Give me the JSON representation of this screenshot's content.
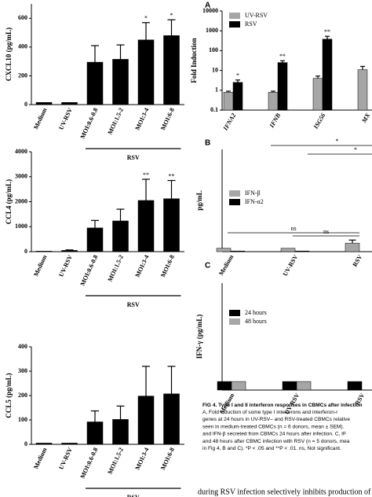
{
  "chart_data": [
    {
      "type": "bar",
      "y_label": "CXCL10 (pg/mL)",
      "categories": [
        "Medium",
        "UV-RSV",
        "MOI:0.6-0.8",
        "MOI:1.5-2",
        "MOI:3-4",
        "MOI:6-8"
      ],
      "values": [
        15,
        15,
        295,
        315,
        450,
        480
      ],
      "errors": [
        0,
        0,
        115,
        100,
        120,
        110
      ],
      "value_annotations": [
        null,
        null,
        null,
        null,
        "*",
        "*"
      ],
      "color": "#000000",
      "ylim": [
        0,
        700
      ],
      "yticks": [
        0,
        200,
        400,
        600
      ],
      "group_label": "RSV"
    },
    {
      "type": "bar",
      "y_label": "CCL4 (pg/mL)",
      "categories": [
        "Medium",
        "UV-RSV",
        "MOI:0.6-0.8",
        "MOI:1.5-2",
        "MOI:3-4",
        "MOI:6-8"
      ],
      "values": [
        20,
        50,
        950,
        1230,
        2050,
        2120
      ],
      "errors": [
        0,
        20,
        300,
        470,
        850,
        730
      ],
      "value_annotations": [
        null,
        null,
        null,
        null,
        "**",
        "**"
      ],
      "color": "#000000",
      "ylim": [
        0,
        4000
      ],
      "yticks": [
        0,
        1000,
        2000,
        3000,
        4000
      ],
      "group_label": "RSV"
    },
    {
      "type": "bar",
      "y_label": "CCL5 (pg/mL)",
      "categories": [
        "Medium",
        "UV-RSV",
        "MOI:0.6-0.8",
        "MOI:1.5-2",
        "MOI:3-4",
        "MOI:6-8"
      ],
      "values": [
        5,
        5,
        92,
        102,
        198,
        207
      ],
      "errors": [
        0,
        0,
        45,
        55,
        122,
        113
      ],
      "color": "#000000",
      "ylim": [
        0,
        400
      ],
      "yticks": [
        0,
        100,
        200,
        300,
        400
      ],
      "group_label": "RSV"
    },
    {
      "type": "bar",
      "panel": "A",
      "y_label": "Fold Induction",
      "log_scale": true,
      "categories": [
        "IFNA2",
        "IFNB",
        "ISG56",
        "MX"
      ],
      "series": [
        {
          "name": "UV-RSV",
          "color": "#a6a6a6",
          "values": [
            0.8,
            0.8,
            4,
            11
          ],
          "errors": [
            0.1,
            0.1,
            1.2,
            5
          ]
        },
        {
          "name": "RSV",
          "color": "#000000",
          "values": [
            2.5,
            25,
            380,
            null
          ],
          "errors": [
            0.8,
            6,
            150,
            null
          ],
          "annotations": [
            "*",
            "**",
            "**",
            null
          ]
        }
      ],
      "ylim": [
        0.1,
        10000
      ],
      "yticks": [
        0.1,
        1,
        10,
        100,
        1000,
        10000
      ],
      "legend": "upper left"
    },
    {
      "type": "bar",
      "panel": "B",
      "y_label": "pg/mL",
      "categories": [
        "Medium",
        "UV-RSV",
        "RSV"
      ],
      "series": [
        {
          "name": "IFN-β",
          "color": "#a6a6a6",
          "values": [
            10,
            10,
            25
          ],
          "errors": [
            0,
            0,
            9
          ]
        },
        {
          "name": "IFN-α2",
          "color": "#000000",
          "values": [
            2,
            2,
            null
          ],
          "errors": [
            0,
            0,
            null
          ]
        }
      ],
      "ylim": [
        0,
        300
      ],
      "annotations": [
        "ns",
        "ns",
        "*",
        "*"
      ],
      "legend": "upper left"
    },
    {
      "type": "bar",
      "panel": "C",
      "y_label": "IFN-γ (pg/mL)",
      "categories": [
        "Medium",
        "UV-RSV",
        "RSV"
      ],
      "series": [
        {
          "name": "24 hours",
          "color": "#000000",
          "values": [
            8,
            8,
            8
          ]
        },
        {
          "name": "48 hours",
          "color": "#a6a6a6",
          "values": [
            8,
            8,
            null
          ]
        }
      ],
      "ylim": [
        0,
        100
      ],
      "legend": "upper left"
    }
  ],
  "caption": [
    "FIG 4. Type I and II interferon responses in CBMCs after infection",
    "A, Fold induction of some type I interferons and interferon-r",
    "genes at 24 hours in UV-RSV– and RSV-treated CBMCs relative",
    "seen in medium-treated CBMCs (n = 6 donors, mean ± SEM).",
    "and IFN-β secreted from CBMCs 24 hours after infection. C, IF",
    "and 48 hours after CBMC infection with RSV (n = 5 donors, mea",
    "in Fig 4, B and C). *P < .05 and **P < .01. ns, Not significant."
  ],
  "body_text": "during RSV infection selectively inhibits production of"
}
